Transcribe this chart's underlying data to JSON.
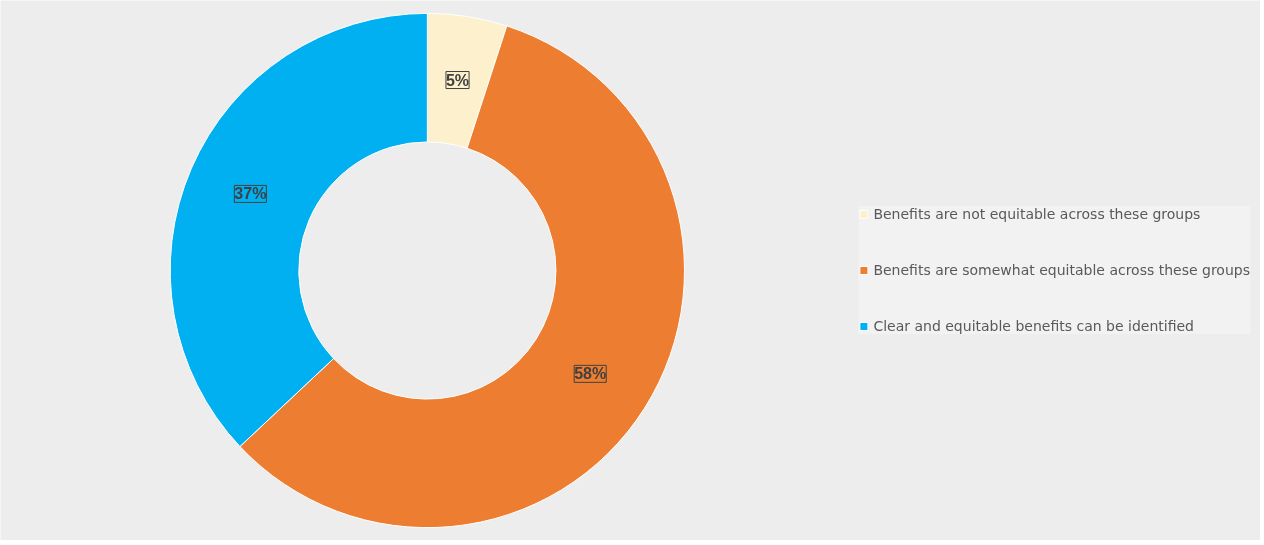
{
  "chart_data": {
    "type": "donut",
    "categories": [
      "Benefits are not equitable across these groups",
      "Benefits are somewhat equitable across these groups",
      "Clear and equitable benefits can be identified"
    ],
    "values": [
      5,
      58,
      37
    ],
    "colors": [
      "#fdf0cc",
      "#ed7d31",
      "#00b0f0"
    ],
    "value_labels": [
      "5%",
      "58%",
      "37%"
    ],
    "legend": "right"
  }
}
